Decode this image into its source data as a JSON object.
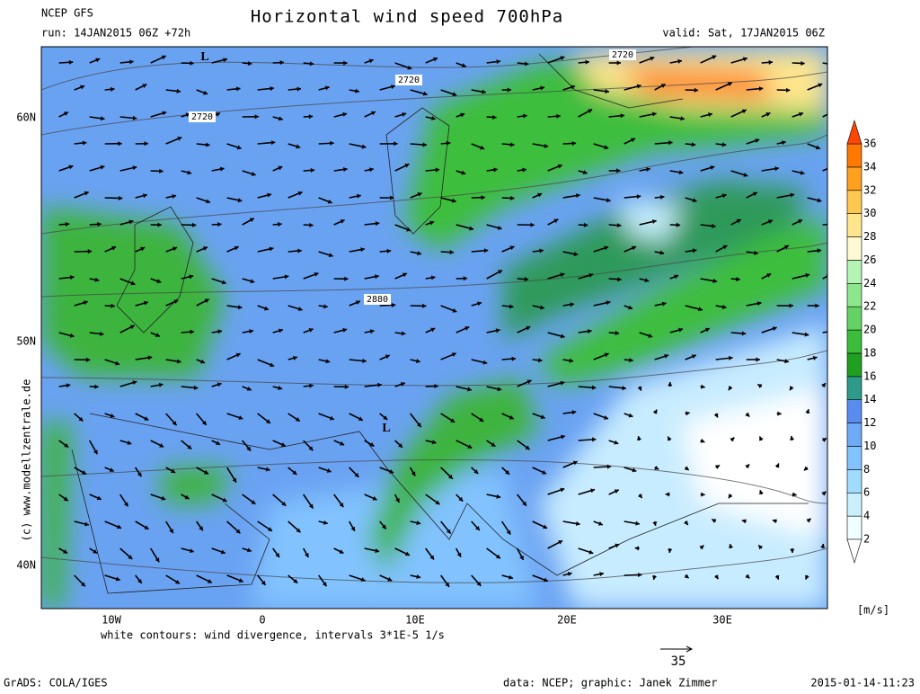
{
  "header": {
    "model": "NCEP GFS",
    "run": "run: 14JAN2015 06Z +72h",
    "title": "Horizontal wind speed 700hPa",
    "valid": "valid: Sat, 17JAN2015 06Z"
  },
  "map": {
    "lat_labels": [
      "60N",
      "50N",
      "40N"
    ],
    "lon_labels": [
      "10W",
      "0",
      "10E",
      "20E",
      "30E"
    ],
    "contour_labels": [
      "2720",
      "2720",
      "2720",
      "2880"
    ],
    "lows": [
      "L",
      "L"
    ],
    "caption": "white contours: wind divergence, intervals 3*1E-5 1/s",
    "side_credit": "(c) www.modellzentrale.de"
  },
  "colorbar": {
    "unit": "[m/s]",
    "ticks": [
      2,
      4,
      6,
      8,
      10,
      12,
      14,
      16,
      18,
      20,
      22,
      24,
      26,
      28,
      30,
      32,
      34,
      36
    ],
    "colors": [
      "#f0ffff",
      "#c8f0ff",
      "#a0dcff",
      "#82c3ff",
      "#6eaaf5",
      "#5a8cf0",
      "#2e9a8a",
      "#20a020",
      "#3cbe3c",
      "#64d264",
      "#8ce68c",
      "#b4f5b4",
      "#fffad2",
      "#ffe68c",
      "#ffc850",
      "#ffa01e",
      "#ff7800"
    ],
    "under_color": "#ffffff",
    "over_color": "#ff4600"
  },
  "vector_reference": "35",
  "footer": {
    "software": "GrADS: COLA/IGES",
    "credits": "data: NCEP; graphic: Janek Zimmer",
    "timestamp": "2015-01-14-11:23"
  }
}
